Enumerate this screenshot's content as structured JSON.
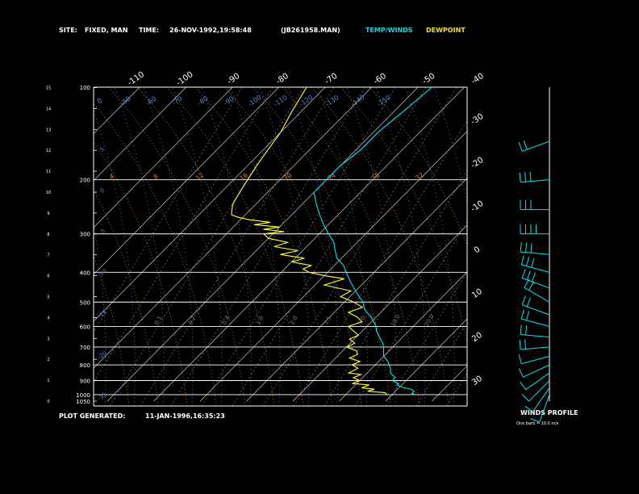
{
  "header": {
    "site_label": "SITE:",
    "site_value": "FIXED, MAN",
    "time_label": "TIME:",
    "time_value": "26-NOV-1992,19:58:48",
    "file_id": "(JB261958.MAN)",
    "legend_temp": "TEMP/WINDS",
    "legend_dew": "DEWPOINT"
  },
  "footer": {
    "plot_generated_label": "PLOT GENERATED:",
    "plot_generated_value": "11-JAN-1996,16:35:23",
    "winds_profile_title": "WINDS PROFILE",
    "winds_note": "One barb = 10.0 m/s"
  },
  "colors": {
    "temperature": "#00e5ee",
    "dewpoint": "#ffff33",
    "axes": "#ffffff",
    "isotherms": "#c8c8c8",
    "dry_adiabats": "#d08040",
    "moist_adiabats": "#5a8cd8",
    "mixing_ratio": "#7a7a7a",
    "legend_temp": "#19d3e0",
    "legend_dew": "#f0e020"
  },
  "chart_data": {
    "type": "line",
    "subtype": "skew-T log-P",
    "pressure_ticks": [
      100,
      200,
      300,
      400,
      500,
      600,
      700,
      800,
      900,
      1000,
      1050
    ],
    "height_ticks": [
      "0",
      "1",
      "2",
      "3",
      "4",
      "5",
      "6",
      "7",
      "8",
      "9",
      "10",
      "11",
      "12",
      "13",
      "14",
      "15"
    ],
    "top_isotherm_labels": [
      "-110",
      "-100",
      "-90",
      "-80",
      "-70",
      "-60",
      "-50",
      "-40"
    ],
    "right_isotherm_labels": [
      "-30",
      "-20",
      "-10",
      "0",
      "10",
      "20",
      "30"
    ],
    "isotherm_range_c": [
      -110,
      30
    ],
    "moist_adiabat_labels_top": [
      "0",
      "-50",
      "-60",
      "-70",
      "-80",
      "-90",
      "-100",
      "-110",
      "-120",
      "-130",
      "-140",
      "-150"
    ],
    "dry_adiabat_labels": [
      "4",
      "8",
      "12",
      "16",
      "20",
      "24",
      "28",
      "32"
    ],
    "mixing_ratio_labels": [
      "0.1",
      "0.2",
      "0.4",
      "1.0",
      "2.0",
      "3.5",
      "5.0",
      "10.0",
      "20.0"
    ],
    "left_moist_labels": [
      "-35",
      "-20",
      "-15",
      "-10",
      "-5",
      "0",
      "5"
    ],
    "series": [
      {
        "name": "TEMP/WINDS",
        "points": [
          [
            1000,
            5
          ],
          [
            990,
            4
          ],
          [
            975,
            4
          ],
          [
            960,
            3
          ],
          [
            950,
            1
          ],
          [
            930,
            -1
          ],
          [
            920,
            -1
          ],
          [
            900,
            -3
          ],
          [
            880,
            -3
          ],
          [
            850,
            -5
          ],
          [
            820,
            -6
          ],
          [
            800,
            -7
          ],
          [
            780,
            -8
          ],
          [
            750,
            -10
          ],
          [
            700,
            -12
          ],
          [
            680,
            -13
          ],
          [
            650,
            -15
          ],
          [
            620,
            -17
          ],
          [
            600,
            -18
          ],
          [
            560,
            -21
          ],
          [
            530,
            -24
          ],
          [
            500,
            -26
          ],
          [
            480,
            -28
          ],
          [
            460,
            -30
          ],
          [
            440,
            -32
          ],
          [
            420,
            -34
          ],
          [
            400,
            -36
          ],
          [
            380,
            -38
          ],
          [
            360,
            -41
          ],
          [
            340,
            -43
          ],
          [
            320,
            -45
          ],
          [
            300,
            -48
          ],
          [
            280,
            -51
          ],
          [
            260,
            -54
          ],
          [
            240,
            -57
          ],
          [
            220,
            -60
          ],
          [
            200,
            -60
          ],
          [
            180,
            -60
          ],
          [
            160,
            -59
          ],
          [
            140,
            -59
          ],
          [
            120,
            -58
          ],
          [
            100,
            -57
          ]
        ]
      },
      {
        "name": "DEWPOINT",
        "points": [
          [
            1000,
            -1
          ],
          [
            985,
            -2
          ],
          [
            975,
            -6
          ],
          [
            960,
            -5
          ],
          [
            950,
            -8
          ],
          [
            930,
            -7
          ],
          [
            920,
            -11
          ],
          [
            900,
            -10
          ],
          [
            880,
            -12
          ],
          [
            860,
            -11
          ],
          [
            850,
            -14
          ],
          [
            820,
            -13
          ],
          [
            800,
            -15
          ],
          [
            780,
            -14
          ],
          [
            760,
            -17
          ],
          [
            740,
            -16
          ],
          [
            720,
            -17
          ],
          [
            700,
            -20
          ],
          [
            680,
            -19
          ],
          [
            660,
            -21
          ],
          [
            640,
            -20
          ],
          [
            620,
            -22
          ],
          [
            600,
            -24
          ],
          [
            580,
            -22
          ],
          [
            560,
            -24
          ],
          [
            540,
            -27
          ],
          [
            520,
            -25
          ],
          [
            500,
            -28
          ],
          [
            480,
            -32
          ],
          [
            460,
            -31
          ],
          [
            440,
            -38
          ],
          [
            420,
            -35
          ],
          [
            410,
            -40
          ],
          [
            400,
            -44
          ],
          [
            390,
            -46
          ],
          [
            380,
            -45
          ],
          [
            370,
            -50
          ],
          [
            360,
            -48
          ],
          [
            350,
            -54
          ],
          [
            340,
            -51
          ],
          [
            330,
            -57
          ],
          [
            320,
            -55
          ],
          [
            310,
            -60
          ],
          [
            300,
            -62
          ],
          [
            295,
            -58
          ],
          [
            290,
            -63
          ],
          [
            285,
            -60
          ],
          [
            280,
            -66
          ],
          [
            275,
            -63
          ],
          [
            270,
            -68
          ],
          [
            265,
            -71
          ],
          [
            260,
            -73
          ],
          [
            250,
            -74
          ],
          [
            240,
            -75
          ],
          [
            220,
            -76
          ],
          [
            200,
            -77
          ],
          [
            180,
            -78
          ],
          [
            160,
            -79
          ],
          [
            140,
            -80
          ],
          [
            120,
            -82
          ],
          [
            100,
            -84
          ]
        ]
      }
    ],
    "winds_profile": {
      "unit": "m/s",
      "barb_value": 10.0,
      "levels": [
        {
          "p": 1000,
          "dir": 200,
          "spd": 6
        },
        {
          "p": 950,
          "dir": 215,
          "spd": 7
        },
        {
          "p": 900,
          "dir": 225,
          "spd": 8
        },
        {
          "p": 850,
          "dir": 235,
          "spd": 10
        },
        {
          "p": 800,
          "dir": 245,
          "spd": 12
        },
        {
          "p": 750,
          "dir": 255,
          "spd": 14
        },
        {
          "p": 700,
          "dir": 265,
          "spd": 16
        },
        {
          "p": 650,
          "dir": 275,
          "spd": 18
        },
        {
          "p": 600,
          "dir": 285,
          "spd": 20
        },
        {
          "p": 550,
          "dir": 290,
          "spd": 22
        },
        {
          "p": 500,
          "dir": 300,
          "spd": 24
        },
        {
          "p": 450,
          "dir": 290,
          "spd": 26
        },
        {
          "p": 400,
          "dir": 285,
          "spd": 30
        },
        {
          "p": 350,
          "dir": 275,
          "spd": 32
        },
        {
          "p": 300,
          "dir": 270,
          "spd": 35
        },
        {
          "p": 250,
          "dir": 270,
          "spd": 30
        },
        {
          "p": 200,
          "dir": 265,
          "spd": 28
        },
        {
          "p": 150,
          "dir": 250,
          "spd": 24
        }
      ]
    }
  }
}
